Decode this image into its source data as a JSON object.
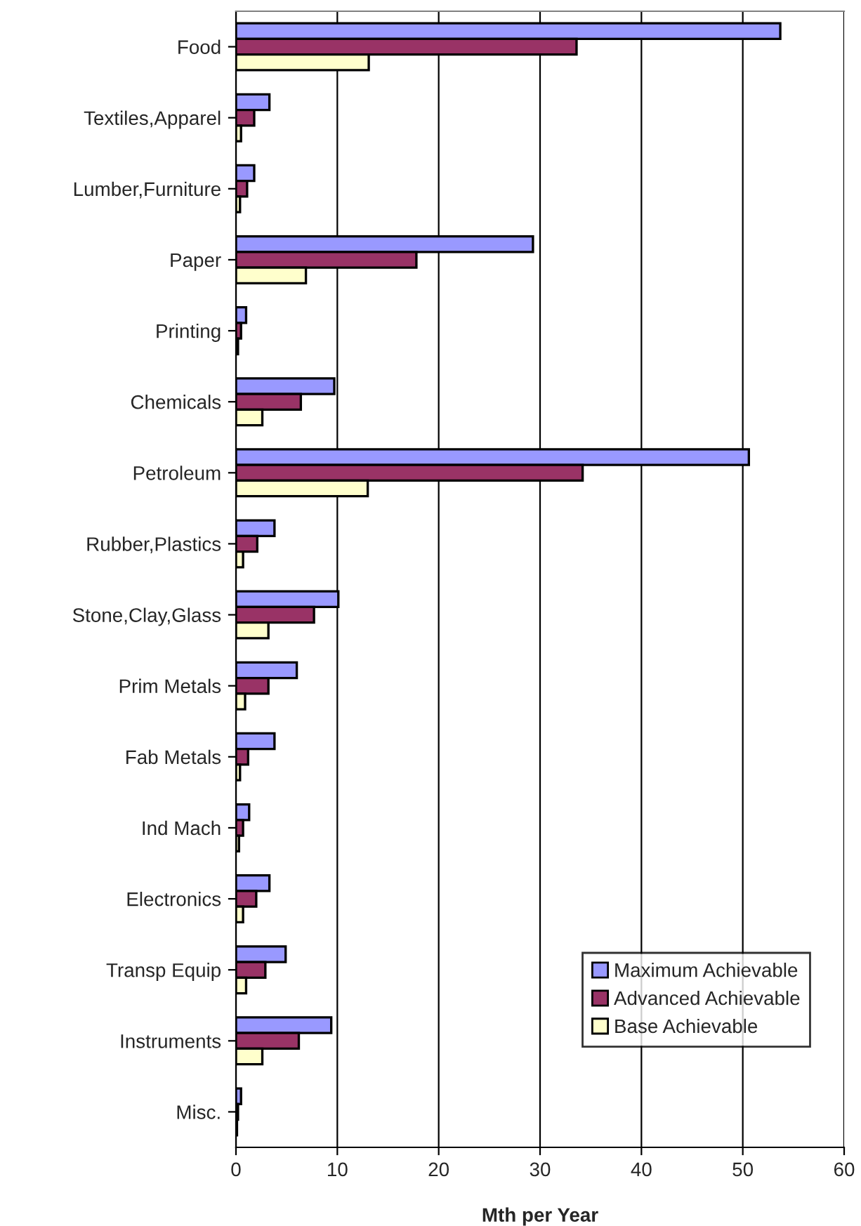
{
  "chart_data": {
    "type": "bar",
    "orientation": "horizontal",
    "xlabel": "Mth per Year",
    "categories": [
      "Food",
      "Textiles,Apparel",
      "Lumber,Furniture",
      "Paper",
      "Printing",
      "Chemicals",
      "Petroleum",
      "Rubber,Plastics",
      "Stone,Clay,Glass",
      "Prim Metals",
      "Fab Metals",
      "Ind Mach",
      "Electronics",
      "Transp Equip",
      "Instruments",
      "Misc."
    ],
    "series": [
      {
        "name": "Maximum Achievable",
        "color": "#9999ff",
        "values": [
          53.7,
          3.3,
          1.8,
          29.3,
          1.0,
          9.7,
          50.6,
          3.8,
          10.1,
          6.0,
          3.8,
          1.3,
          3.3,
          4.9,
          9.4,
          0.5
        ]
      },
      {
        "name": "Advanced Achievable",
        "color": "#993366",
        "values": [
          33.6,
          1.8,
          1.1,
          17.8,
          0.5,
          6.4,
          34.2,
          2.1,
          7.7,
          3.2,
          1.2,
          0.7,
          2.0,
          2.9,
          6.2,
          0.2
        ]
      },
      {
        "name": "Base Achievable",
        "color": "#ffffcc",
        "values": [
          13.1,
          0.5,
          0.4,
          6.9,
          0.2,
          2.6,
          13.0,
          0.7,
          3.2,
          0.9,
          0.4,
          0.3,
          0.7,
          1.0,
          2.6,
          0.1
        ]
      }
    ],
    "xlim": [
      0,
      60
    ],
    "xticks": [
      0,
      10,
      20,
      30,
      40,
      50,
      60
    ],
    "grid": "x",
    "legend": "bottom right"
  }
}
